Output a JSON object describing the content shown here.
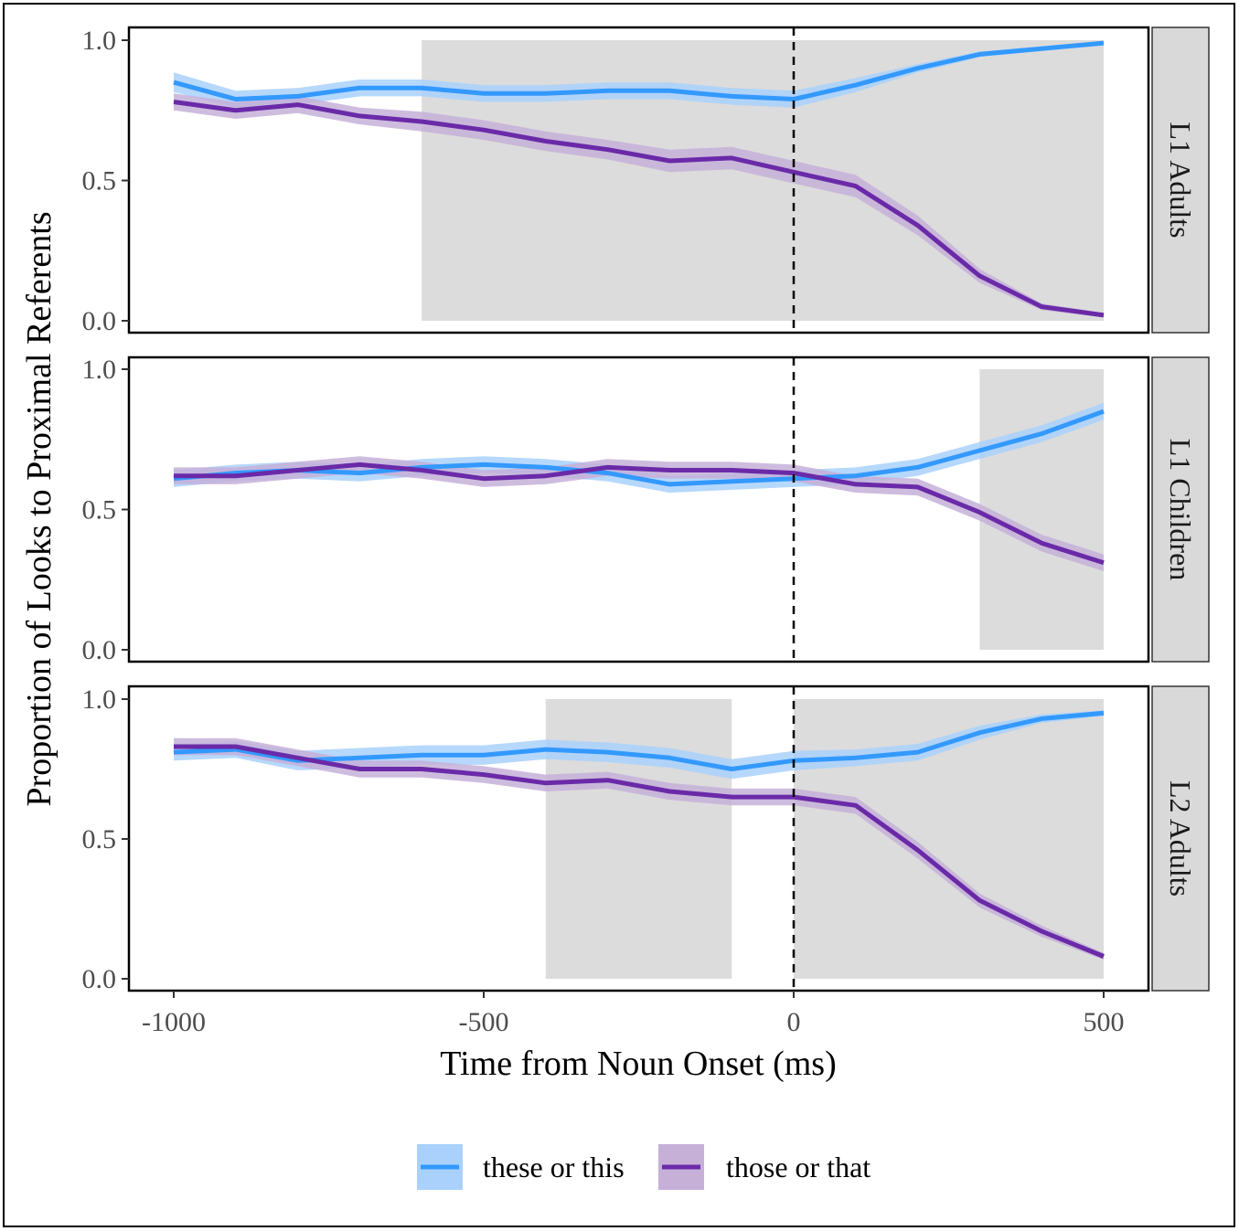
{
  "chart_data": {
    "type": "line",
    "xlabel": "Time from Noun Onset (ms)",
    "ylabel": "Proportion of Looks to Proximal Referents",
    "xlim": [
      -1000,
      500
    ],
    "ylim": [
      0,
      1
    ],
    "x_ticks": [
      {
        "value": -1000,
        "label": "-1000"
      },
      {
        "value": -500,
        "label": "-500"
      },
      {
        "value": 0,
        "label": "0"
      },
      {
        "value": 500,
        "label": "500"
      }
    ],
    "y_ticks": [
      {
        "value": 0,
        "label": "0.0"
      },
      {
        "value": 0.5,
        "label": "0.5"
      },
      {
        "value": 1,
        "label": "1.0"
      }
    ],
    "reference_line": {
      "x": 0,
      "style": "dashed"
    },
    "grid": false,
    "legend": {
      "position": "bottom"
    },
    "series_styles": [
      {
        "name": "these or this",
        "color": "#3399ff",
        "ribbon_color": "#a9d1fb"
      },
      {
        "name": "those or that",
        "color": "#6a2aa8",
        "ribbon_color": "#c6b0d8"
      }
    ],
    "x": [
      -1000,
      -900,
      -800,
      -700,
      -600,
      -500,
      -400,
      -300,
      -200,
      -100,
      0,
      100,
      200,
      300,
      400,
      500
    ],
    "panels": [
      {
        "label": "L1 Adults",
        "shaded_regions": [
          [
            -600,
            500
          ]
        ],
        "series": [
          {
            "name": "these or this",
            "values": [
              0.85,
              0.79,
              0.8,
              0.83,
              0.83,
              0.81,
              0.81,
              0.82,
              0.82,
              0.8,
              0.79,
              0.84,
              0.9,
              0.95,
              0.97,
              0.99
            ],
            "ci": [
              0.035,
              0.03,
              0.03,
              0.03,
              0.03,
              0.03,
              0.03,
              0.03,
              0.03,
              0.03,
              0.03,
              0.025,
              0.015,
              0.01,
              0.008,
              0.006
            ]
          },
          {
            "name": "those or that",
            "values": [
              0.78,
              0.75,
              0.77,
              0.73,
              0.71,
              0.68,
              0.64,
              0.61,
              0.57,
              0.58,
              0.53,
              0.48,
              0.34,
              0.16,
              0.05,
              0.02
            ],
            "ci": [
              0.03,
              0.03,
              0.03,
              0.03,
              0.035,
              0.035,
              0.035,
              0.035,
              0.04,
              0.04,
              0.04,
              0.04,
              0.035,
              0.025,
              0.012,
              0.008
            ]
          }
        ]
      },
      {
        "label": "L1 Children",
        "shaded_regions": [
          [
            300,
            500
          ]
        ],
        "series": [
          {
            "name": "these or this",
            "values": [
              0.61,
              0.63,
              0.64,
              0.63,
              0.65,
              0.66,
              0.65,
              0.63,
              0.59,
              0.6,
              0.61,
              0.62,
              0.65,
              0.71,
              0.77,
              0.85
            ],
            "ci": [
              0.03,
              0.03,
              0.03,
              0.03,
              0.03,
              0.03,
              0.03,
              0.03,
              0.03,
              0.03,
              0.03,
              0.03,
              0.03,
              0.03,
              0.03,
              0.03
            ]
          },
          {
            "name": "those or that",
            "values": [
              0.62,
              0.62,
              0.64,
              0.66,
              0.64,
              0.61,
              0.62,
              0.65,
              0.64,
              0.64,
              0.63,
              0.59,
              0.58,
              0.49,
              0.38,
              0.31
            ],
            "ci": [
              0.03,
              0.03,
              0.03,
              0.03,
              0.03,
              0.03,
              0.03,
              0.03,
              0.03,
              0.03,
              0.03,
              0.03,
              0.03,
              0.03,
              0.03,
              0.03
            ]
          }
        ]
      },
      {
        "label": "L2 Adults",
        "shaded_regions": [
          [
            -400,
            -100
          ],
          [
            0,
            500
          ]
        ],
        "series": [
          {
            "name": "these or this",
            "values": [
              0.81,
              0.82,
              0.78,
              0.79,
              0.8,
              0.8,
              0.82,
              0.81,
              0.79,
              0.75,
              0.78,
              0.79,
              0.81,
              0.88,
              0.93,
              0.95
            ],
            "ci": [
              0.03,
              0.03,
              0.035,
              0.035,
              0.035,
              0.035,
              0.035,
              0.035,
              0.035,
              0.035,
              0.035,
              0.03,
              0.03,
              0.025,
              0.015,
              0.01
            ]
          },
          {
            "name": "those or that",
            "values": [
              0.83,
              0.83,
              0.79,
              0.75,
              0.75,
              0.73,
              0.7,
              0.71,
              0.67,
              0.65,
              0.65,
              0.62,
              0.46,
              0.28,
              0.17,
              0.08
            ],
            "ci": [
              0.03,
              0.03,
              0.03,
              0.03,
              0.03,
              0.03,
              0.03,
              0.03,
              0.03,
              0.03,
              0.03,
              0.03,
              0.03,
              0.025,
              0.02,
              0.012
            ]
          }
        ]
      }
    ]
  }
}
